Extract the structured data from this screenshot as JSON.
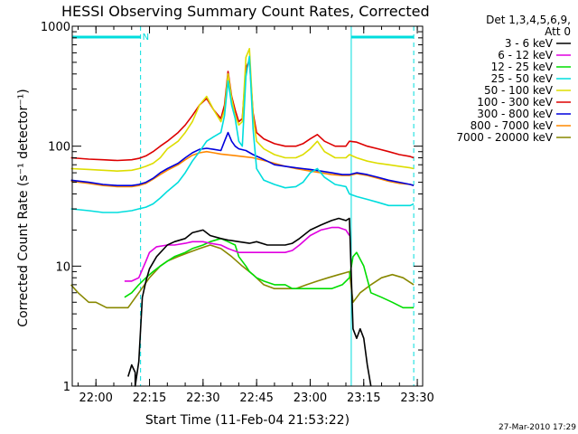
{
  "chart_data": {
    "type": "line",
    "title": "HESSI Observing Summary Count Rates, Corrected",
    "xlabel": "Start Time (11-Feb-04 21:53:22)",
    "ylabel": "Corrected Count Rate (s⁻¹ detector⁻¹)",
    "yscale": "log",
    "ylim": [
      1,
      1000
    ],
    "xlim": [
      "21:53:22",
      "23:31:30"
    ],
    "x_ticks": [
      "22:00",
      "22:15",
      "22:30",
      "22:45",
      "23:00",
      "23:15",
      "23:30"
    ],
    "y_ticks": [
      "1",
      "10",
      "100",
      "1000"
    ],
    "legend_header": [
      "Det 1,3,4,5,6,9,",
      "Att 0"
    ],
    "legend_placement": "right",
    "footer": "27-Mar-2010 17:29",
    "flags": [
      {
        "label": "",
        "start": "21:53:22",
        "end": "22:12:30"
      },
      {
        "label": "N",
        "start": "22:12:30",
        "end": null
      },
      {
        "label": "",
        "start": "23:11:30",
        "end": "23:29:00"
      }
    ],
    "vlines": [
      {
        "time": "21:53:22",
        "style": "solid"
      },
      {
        "time": "22:12:30",
        "style": "dashed"
      },
      {
        "time": "23:11:30",
        "style": "solid"
      },
      {
        "time": "23:29:00",
        "style": "dashed"
      }
    ],
    "series": [
      {
        "name": "3 - 6 keV",
        "color": "#000000",
        "x": [
          "22:00",
          "22:03",
          "22:06",
          "22:08",
          "22:09",
          "22:10",
          "22:11",
          "22:11",
          "22:12",
          "22:13",
          "22:14",
          "22:15",
          "22:17",
          "22:20",
          "22:22",
          "22:25",
          "22:27",
          "22:30",
          "22:32",
          "22:35",
          "22:37",
          "22:40",
          "22:43",
          "22:45",
          "22:48",
          "22:50",
          "22:53",
          "22:55",
          "22:57",
          "23:00",
          "23:03",
          "23:06",
          "23:08",
          "23:10",
          "23:11",
          "23:12",
          "23:13",
          "23:14",
          "23:15",
          "23:16",
          "23:17"
        ],
        "y": [
          null,
          null,
          null,
          null,
          1.2,
          1.5,
          1.3,
          1.0,
          1.6,
          5.5,
          7.5,
          9.5,
          12,
          15,
          16,
          17,
          19,
          20,
          18,
          17,
          16.5,
          16,
          15.5,
          16,
          15,
          15,
          15,
          15.5,
          17,
          20,
          22,
          24,
          25,
          24,
          25,
          3,
          2.5,
          3,
          2.5,
          1.5,
          1.0
        ]
      },
      {
        "name": "6 - 12 keV",
        "color": "#e000e0",
        "x": [
          "22:08",
          "22:10",
          "22:12",
          "22:14",
          "22:15",
          "22:17",
          "22:20",
          "22:22",
          "22:25",
          "22:27",
          "22:30",
          "22:32",
          "22:35",
          "22:37",
          "22:40",
          "22:43",
          "22:45",
          "22:48",
          "22:50",
          "22:53",
          "22:55",
          "22:57",
          "23:00",
          "23:03",
          "23:06",
          "23:08",
          "23:10",
          "23:11"
        ],
        "y": [
          7.5,
          7.5,
          8,
          11,
          13,
          14.5,
          15,
          15,
          15.5,
          16,
          16,
          15.5,
          15,
          14,
          13,
          13,
          13,
          13,
          13,
          13,
          13.5,
          15,
          18,
          20,
          21,
          21,
          20,
          18
        ]
      },
      {
        "name": "12 - 25 keV",
        "color": "#00dd00",
        "x": [
          "22:08",
          "22:10",
          "22:12",
          "22:14",
          "22:16",
          "22:18",
          "22:20",
          "22:22",
          "22:25",
          "22:27",
          "22:30",
          "22:32",
          "22:35",
          "22:37",
          "22:39",
          "22:40",
          "22:42",
          "22:43",
          "22:45",
          "22:47",
          "22:50",
          "22:53",
          "22:55",
          "22:58",
          "23:00",
          "23:03",
          "23:06",
          "23:09",
          "23:11",
          "23:12",
          "23:13",
          "23:15",
          "23:17",
          "23:20",
          "23:23",
          "23:26",
          "23:28",
          "23:29"
        ],
        "y": [
          5.5,
          6,
          7,
          8,
          9,
          10,
          11,
          12,
          13,
          14,
          15,
          16,
          17,
          16,
          15,
          12,
          10,
          9,
          8,
          7.5,
          7,
          7,
          6.5,
          6.5,
          6.5,
          6.5,
          6.5,
          7,
          8,
          12,
          13,
          10,
          6,
          5.5,
          5,
          4.5,
          4.5,
          4.5
        ]
      },
      {
        "name": "25 - 50 keV",
        "color": "#00dddd",
        "x": [
          "21:53",
          "21:58",
          "22:02",
          "22:06",
          "22:10",
          "22:12",
          "22:14",
          "22:16",
          "22:18",
          "22:20",
          "22:23",
          "22:25",
          "22:27",
          "22:29",
          "22:31",
          "22:33",
          "22:35",
          "22:36",
          "22:37",
          "22:38",
          "22:39",
          "22:40",
          "22:41",
          "22:42",
          "22:43",
          "22:44",
          "22:45",
          "22:47",
          "22:50",
          "22:53",
          "22:56",
          "22:58",
          "23:00",
          "23:02",
          "23:04",
          "23:07",
          "23:10",
          "23:11",
          "23:13",
          "23:16",
          "23:19",
          "23:22",
          "23:25",
          "23:28",
          "23:29"
        ],
        "y": [
          30,
          29,
          28,
          28,
          29,
          30,
          31,
          33,
          37,
          42,
          50,
          60,
          75,
          90,
          110,
          120,
          130,
          180,
          350,
          220,
          170,
          110,
          100,
          380,
          560,
          140,
          65,
          52,
          48,
          45,
          46,
          50,
          60,
          65,
          55,
          48,
          46,
          40,
          38,
          36,
          34,
          32,
          32,
          32,
          33
        ]
      },
      {
        "name": "50 - 100 keV",
        "color": "#dddd00",
        "x": [
          "21:53",
          "21:58",
          "22:02",
          "22:06",
          "22:10",
          "22:12",
          "22:14",
          "22:16",
          "22:18",
          "22:20",
          "22:23",
          "22:25",
          "22:27",
          "22:29",
          "22:31",
          "22:33",
          "22:35",
          "22:36",
          "22:37",
          "22:38",
          "22:39",
          "22:40",
          "22:41",
          "22:42",
          "22:43",
          "22:44",
          "22:45",
          "22:47",
          "22:50",
          "22:53",
          "22:56",
          "22:58",
          "23:00",
          "23:02",
          "23:04",
          "23:07",
          "23:10",
          "23:11",
          "23:13",
          "23:16",
          "23:19",
          "23:22",
          "23:25",
          "23:28",
          "23:29"
        ],
        "y": [
          65,
          64,
          63,
          62,
          63,
          65,
          68,
          72,
          80,
          95,
          110,
          130,
          160,
          220,
          260,
          200,
          160,
          200,
          400,
          250,
          180,
          150,
          160,
          550,
          650,
          180,
          110,
          95,
          85,
          80,
          80,
          85,
          95,
          110,
          90,
          80,
          80,
          85,
          80,
          75,
          72,
          70,
          68,
          66,
          65
        ]
      },
      {
        "name": "100 - 300 keV",
        "color": "#dd0000",
        "x": [
          "21:53",
          "21:58",
          "22:02",
          "22:06",
          "22:10",
          "22:12",
          "22:14",
          "22:16",
          "22:18",
          "22:20",
          "22:23",
          "22:25",
          "22:27",
          "22:29",
          "22:31",
          "22:33",
          "22:35",
          "22:36",
          "22:37",
          "22:38",
          "22:39",
          "22:40",
          "22:41",
          "22:42",
          "22:43",
          "22:44",
          "22:45",
          "22:47",
          "22:50",
          "22:53",
          "22:56",
          "22:58",
          "23:00",
          "23:02",
          "23:04",
          "23:07",
          "23:10",
          "23:11",
          "23:13",
          "23:16",
          "23:19",
          "23:22",
          "23:25",
          "23:28",
          "23:29"
        ],
        "y": [
          80,
          78,
          77,
          76,
          77,
          79,
          83,
          90,
          100,
          110,
          130,
          150,
          180,
          220,
          250,
          200,
          170,
          220,
          420,
          260,
          200,
          160,
          170,
          450,
          520,
          190,
          130,
          115,
          105,
          100,
          100,
          105,
          115,
          125,
          110,
          100,
          100,
          110,
          108,
          100,
          95,
          90,
          85,
          82,
          80
        ]
      },
      {
        "name": "300 - 800 keV",
        "color": "#0000dd",
        "x": [
          "21:53",
          "21:58",
          "22:02",
          "22:06",
          "22:10",
          "22:12",
          "22:14",
          "22:16",
          "22:18",
          "22:20",
          "22:23",
          "22:25",
          "22:27",
          "22:29",
          "22:31",
          "22:33",
          "22:35",
          "22:36",
          "22:37",
          "22:38",
          "22:39",
          "22:40",
          "22:42",
          "22:44",
          "22:46",
          "22:48",
          "22:50",
          "22:53",
          "22:56",
          "22:58",
          "23:00",
          "23:03",
          "23:06",
          "23:09",
          "23:11",
          "23:13",
          "23:16",
          "23:19",
          "23:22",
          "23:25",
          "23:28",
          "23:29"
        ],
        "y": [
          52,
          50,
          48,
          47,
          47,
          48,
          50,
          54,
          60,
          65,
          72,
          80,
          88,
          94,
          96,
          94,
          92,
          110,
          130,
          110,
          100,
          95,
          92,
          85,
          80,
          75,
          70,
          68,
          66,
          65,
          64,
          62,
          60,
          58,
          58,
          60,
          58,
          55,
          52,
          50,
          48,
          47
        ]
      },
      {
        "name": "800 - 7000 keV",
        "color": "#ff8800",
        "x": [
          "21:53",
          "21:58",
          "22:02",
          "22:06",
          "22:10",
          "22:12",
          "22:14",
          "22:16",
          "22:18",
          "22:20",
          "22:23",
          "22:25",
          "22:27",
          "22:29",
          "22:31",
          "22:33",
          "22:35",
          "22:38",
          "22:41",
          "22:44",
          "22:47",
          "22:50",
          "22:53",
          "22:56",
          "23:00",
          "23:03",
          "23:06",
          "23:09",
          "23:11",
          "23:13",
          "23:16",
          "23:19",
          "23:22",
          "23:25",
          "23:28",
          "23:29"
        ],
        "y": [
          51,
          49,
          47,
          46,
          46,
          47,
          49,
          53,
          58,
          63,
          70,
          77,
          84,
          88,
          90,
          88,
          86,
          84,
          82,
          80,
          76,
          72,
          68,
          65,
          62,
          60,
          58,
          57,
          57,
          59,
          57,
          54,
          51,
          49,
          48,
          47
        ]
      },
      {
        "name": "7000 - 20000 keV",
        "color": "#888800",
        "x": [
          "21:53",
          "21:55",
          "21:58",
          "22:00",
          "22:03",
          "22:06",
          "22:09",
          "22:12",
          "22:15",
          "22:18",
          "22:20",
          "22:23",
          "22:26",
          "22:29",
          "22:32",
          "22:35",
          "22:38",
          "22:41",
          "22:44",
          "22:47",
          "22:50",
          "22:53",
          "22:56",
          "22:59",
          "23:02",
          "23:05",
          "23:08",
          "23:11",
          "23:12",
          "23:14",
          "23:17",
          "23:20",
          "23:23",
          "23:26",
          "23:29"
        ],
        "y": [
          7,
          6,
          5,
          5,
          4.5,
          4.5,
          4.5,
          6,
          8,
          10,
          11,
          12,
          13,
          14,
          15,
          14,
          12,
          10,
          8.5,
          7,
          6.5,
          6.5,
          6.5,
          7,
          7.5,
          8,
          8.5,
          9,
          5,
          6,
          7,
          8,
          8.5,
          8,
          7
        ]
      }
    ]
  }
}
